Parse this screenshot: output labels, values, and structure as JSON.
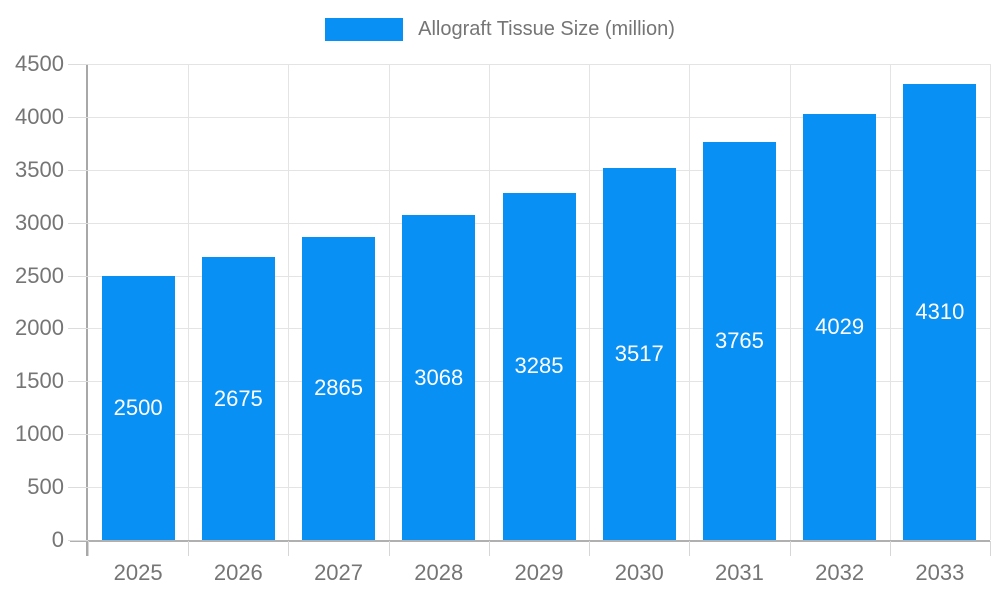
{
  "legend": {
    "label": "Allograft Tissue Size (million)"
  },
  "chart_data": {
    "type": "bar",
    "title": "",
    "series_name": "Allograft Tissue Size (million)",
    "categories": [
      "2025",
      "2026",
      "2027",
      "2028",
      "2029",
      "2030",
      "2031",
      "2032",
      "2033"
    ],
    "values": [
      2500,
      2675,
      2865,
      3068,
      3285,
      3517,
      3765,
      4029,
      4310
    ],
    "value_labels": [
      "2500",
      "2675",
      "2865",
      "3068",
      "3285",
      "3517",
      "3765",
      "4029",
      "4310"
    ],
    "xlabel": "",
    "ylabel": "",
    "ylim": [
      0,
      4500
    ],
    "ytick_step": 500,
    "ytick_labels": [
      "0",
      "500",
      "1000",
      "1500",
      "2000",
      "2500",
      "3000",
      "3500",
      "4000",
      "4500"
    ],
    "grid": true,
    "legend_position": "top-center",
    "bar_color": "#0990f5",
    "value_label_color": "#ffffff",
    "axis_label_color": "#757575",
    "grid_color": "#e4e4e4"
  }
}
